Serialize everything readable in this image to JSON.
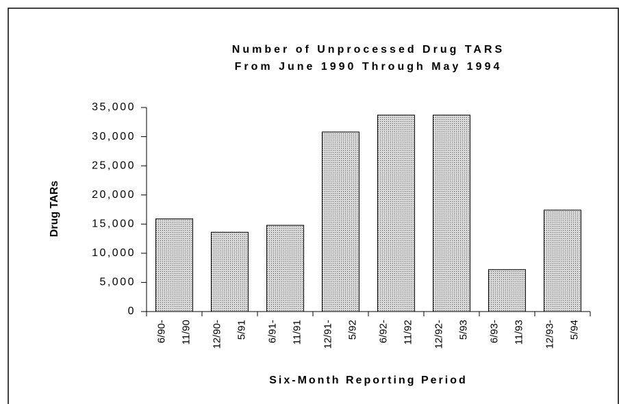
{
  "chart_data": {
    "type": "bar",
    "title": [
      "Number of Unprocessed Drug TARS",
      "From June 1990 Through May 1994"
    ],
    "y_label": "Drug TARs",
    "x_label": "Six-Month Reporting Period",
    "categories": [
      [
        "6/90-",
        "11/90"
      ],
      [
        "12/90-",
        "5/91"
      ],
      [
        "6/91-",
        "11/91"
      ],
      [
        "12/91-",
        "5/92"
      ],
      [
        "6/92-",
        "11/92"
      ],
      [
        "12/92-",
        "5/93"
      ],
      [
        "6/93-",
        "11/93"
      ],
      [
        "12/93-",
        "5/94"
      ]
    ],
    "values": [
      15900,
      13600,
      14800,
      30800,
      33700,
      33700,
      7200,
      17400
    ],
    "color": "#b8b8b8",
    "ylim": [
      0,
      35000
    ],
    "yticks": [
      0,
      {
        "value": 5000,
        "label": "5,000"
      },
      {
        "value": 10000,
        "label": "10,000"
      },
      {
        "value": 15000,
        "label": "15,000"
      },
      {
        "value": 20000,
        "label": "20,000"
      },
      {
        "value": 25000,
        "label": "25,000"
      },
      {
        "value": 30000,
        "label": "30,000"
      },
      {
        "value": 35000,
        "label": "35,000"
      }
    ],
    "grid": false
  }
}
